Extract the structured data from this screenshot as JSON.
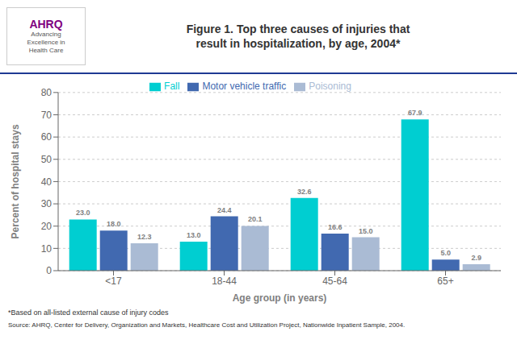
{
  "chart_data": {
    "type": "bar",
    "title": "Figure 1. Top three causes of injuries that\nresult in hospitalization, by age, 2004*",
    "xlabel": "Age group (in years)",
    "ylabel": "Percent of hospital stays",
    "categories": [
      "<17",
      "18-44",
      "45-64",
      "65+"
    ],
    "series": [
      {
        "name": "Fall",
        "color": "#00CED1",
        "values": [
          23.0,
          13.0,
          32.6,
          67.9
        ],
        "value_labels": [
          "23.0",
          "13.0",
          "32.6",
          "67.9"
        ]
      },
      {
        "name": "Motor vehicle traffic",
        "color": "#4169B0",
        "values": [
          18.0,
          24.4,
          16.6,
          5.0
        ],
        "value_labels": [
          "18.0",
          "24.4",
          "16.6",
          "5.0"
        ]
      },
      {
        "name": "Poisoning",
        "color": "#AABBD4",
        "values": [
          12.3,
          20.1,
          15.0,
          2.9
        ],
        "value_labels": [
          "12.3",
          "20.1",
          "15.0",
          "2.9"
        ]
      }
    ],
    "ylim": [
      0,
      80
    ],
    "yticks": [
      0,
      10,
      20,
      30,
      40,
      50,
      60,
      70,
      80
    ],
    "grid": true,
    "legend": "top",
    "data_labels": true,
    "annotations": [
      "AHRQ",
      "Advancing\nExcellence in\nHealth Care",
      "*Based on all-listed external cause of injury codes",
      "Source: AHRQ, Center for Delivery, Organization and Markets, Healthcare Cost and Utilization Project, Nationwide Inpatient Sample, 2004."
    ]
  }
}
